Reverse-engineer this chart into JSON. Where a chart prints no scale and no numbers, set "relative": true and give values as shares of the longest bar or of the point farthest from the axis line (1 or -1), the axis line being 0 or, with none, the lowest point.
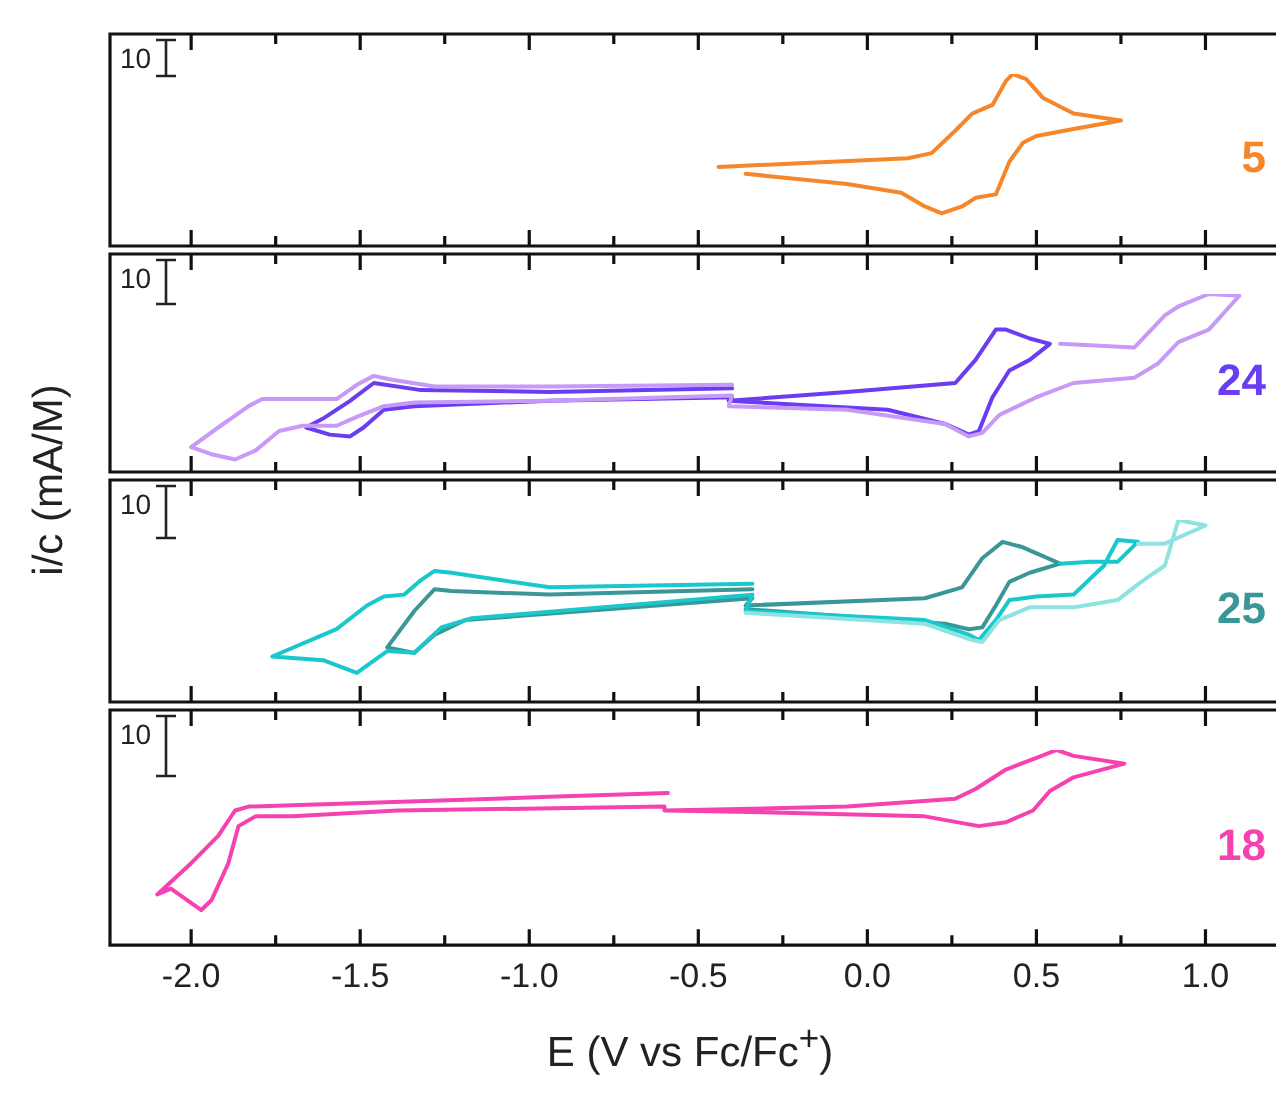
{
  "chart_data": [
    {
      "type": "line",
      "ylabel": "i/c (mA/M)",
      "relative": true,
      "tick_labels": false,
      "xlim": [
        -2.24,
        1.25
      ],
      "xticks": [
        -2,
        {
          "value": -1.75,
          "label": null
        },
        -1.5,
        {
          "value": -1.25,
          "label": null
        },
        -1,
        {
          "value": -0.75,
          "label": null
        },
        -0.5,
        {
          "value": -0.25,
          "label": null
        },
        0,
        {
          "value": 0.25,
          "label": null
        },
        0.5,
        {
          "value": 0.75,
          "label": null
        },
        1
      ],
      "annotations": [
        "10"
      ],
      "series": [
        {
          "name": "5",
          "color": "#f5862a",
          "x": [
            -0.44,
            0.12,
            0.19,
            0.26,
            0.31,
            0.37,
            0.41,
            0.43,
            0.47,
            0.52,
            0.61,
            0.75,
            0.61,
            0.5,
            0.46,
            0.42,
            0.38,
            0.32,
            0.28,
            0.22,
            0.17,
            0.1,
            -0.06,
            -0.36
          ],
          "values": [
            0.46,
            0.51,
            0.54,
            0.67,
            0.77,
            0.82,
            0.96,
            1,
            0.97,
            0.86,
            0.77,
            0.73,
            0.68,
            0.64,
            0.6,
            0.49,
            0.3,
            0.28,
            0.23,
            0.19,
            0.23,
            0.31,
            0.36,
            0.42
          ]
        }
      ]
    },
    {
      "type": "line",
      "relative": true,
      "tick_labels": false,
      "xlim": [
        -2.24,
        1.25
      ],
      "xticks": [
        -2,
        {
          "value": -1.75,
          "label": null
        },
        -1.5,
        {
          "value": -1.25,
          "label": null
        },
        -1,
        {
          "value": -0.75,
          "label": null
        },
        -0.5,
        {
          "value": -0.25,
          "label": null
        },
        0,
        {
          "value": 0.25,
          "label": null
        },
        0.5,
        {
          "value": 0.75,
          "label": null
        },
        1
      ],
      "annotations": [
        "10"
      ],
      "series": [
        {
          "color": "#c79af7",
          "x": [
            -0.4,
            -0.94,
            -1.28,
            -1.41,
            -1.46,
            -1.51,
            -1.57,
            -1.79,
            -1.83,
            -1.92,
            -2.0,
            -1.94,
            -1.87,
            -1.81,
            -1.74,
            -1.67,
            -1.57,
            -1.51,
            -1.43,
            -1.34,
            -0.94,
            -0.4,
            -0.41,
            -0.06,
            0.23,
            0.3,
            0.34,
            0.39,
            0.5,
            0.61,
            0.79,
            0.86,
            0.92,
            1.01,
            1.1,
            1.01,
            0.92,
            0.88,
            0.79,
            0.57
          ],
          "values": [
            0.49,
            0.48,
            0.48,
            0.52,
            0.54,
            0.49,
            0.41,
            0.41,
            0.37,
            0.25,
            0.14,
            0.1,
            0.07,
            0.12,
            0.23,
            0.26,
            0.26,
            0.31,
            0.37,
            0.39,
            0.4,
            0.43,
            0.37,
            0.35,
            0.27,
            0.2,
            0.22,
            0.32,
            0.42,
            0.5,
            0.53,
            0.61,
            0.73,
            0.8,
            0.99,
            1,
            0.93,
            0.88,
            0.7,
            0.72
          ]
        },
        {
          "name": "24",
          "color": "#6a3cf2",
          "x": [
            -0.4,
            -0.94,
            -1.32,
            -1.46,
            -1.53,
            -1.61,
            -1.66,
            -1.59,
            -1.53,
            -1.49,
            -1.43,
            -1.34,
            -0.94,
            -0.4,
            -0.41,
            -0.06,
            0.26,
            0.32,
            0.38,
            0.41,
            0.48,
            0.54,
            0.48,
            0.42,
            0.37,
            0.33,
            0.3,
            0.23,
            0.06,
            -0.41
          ],
          "values": [
            0.47,
            0.45,
            0.46,
            0.5,
            0.4,
            0.3,
            0.25,
            0.21,
            0.2,
            0.25,
            0.35,
            0.37,
            0.4,
            0.42,
            0.4,
            0.45,
            0.5,
            0.63,
            0.8,
            0.8,
            0.75,
            0.72,
            0.63,
            0.57,
            0.42,
            0.23,
            0.21,
            0.27,
            0.35,
            0.4
          ]
        }
      ]
    },
    {
      "type": "line",
      "relative": true,
      "tick_labels": false,
      "xlim": [
        -2.24,
        1.25
      ],
      "xticks": [
        -2,
        {
          "value": -1.75,
          "label": null
        },
        -1.5,
        {
          "value": -1.25,
          "label": null
        },
        -1,
        {
          "value": -0.75,
          "label": null
        },
        -0.5,
        {
          "value": -0.25,
          "label": null
        },
        0,
        {
          "value": 0.25,
          "label": null
        },
        0.5,
        {
          "value": 0.75,
          "label": null
        },
        1
      ],
      "annotations": [
        "10"
      ],
      "series": [
        {
          "color": "#8de3df",
          "x": [
            -0.36,
            0.17,
            0.31,
            0.34,
            0.39,
            0.48,
            0.61,
            0.74,
            0.81,
            0.88,
            0.92,
            1.0,
            0.88,
            0.8
          ],
          "values": [
            0.49,
            0.43,
            0.34,
            0.33,
            0.45,
            0.52,
            0.52,
            0.56,
            0.66,
            0.75,
            1,
            0.97,
            0.87,
            0.87
          ]
        },
        {
          "color": "#19c8cc",
          "x": [
            -0.34,
            -0.94,
            -1.23,
            -1.28,
            -1.32,
            -1.37,
            -1.43,
            -1.48,
            -1.57,
            -1.76,
            -1.61,
            -1.51,
            -1.42,
            -1.34,
            -1.26,
            -1.17,
            -0.34,
            -0.36,
            0.17,
            0.3,
            0.33,
            0.38,
            0.42,
            0.5,
            0.61,
            0.7,
            0.74,
            0.8,
            0.74,
            0.66,
            0.57
          ],
          "values": [
            0.65,
            0.63,
            0.71,
            0.72,
            0.67,
            0.59,
            0.58,
            0.53,
            0.4,
            0.25,
            0.23,
            0.16,
            0.28,
            0.27,
            0.41,
            0.46,
            0.59,
            0.5,
            0.45,
            0.37,
            0.34,
            0.45,
            0.56,
            0.58,
            0.59,
            0.75,
            0.89,
            0.88,
            0.77,
            0.77,
            0.76
          ]
        },
        {
          "name": "25",
          "color": "#3a9797",
          "x": [
            -0.34,
            -0.94,
            -1.23,
            -1.28,
            -1.34,
            -1.42,
            -1.34,
            -1.28,
            -1.19,
            -0.34,
            -0.36,
            0.17,
            0.28,
            0.34,
            0.4,
            0.46,
            0.57,
            0.48,
            0.42,
            0.38,
            0.34,
            0.3,
            0.23,
            -0.06,
            -0.36
          ],
          "values": [
            0.62,
            0.59,
            0.61,
            0.62,
            0.5,
            0.3,
            0.27,
            0.37,
            0.45,
            0.57,
            0.53,
            0.57,
            0.63,
            0.79,
            0.88,
            0.85,
            0.76,
            0.71,
            0.66,
            0.53,
            0.41,
            0.4,
            0.43,
            0.47,
            0.51
          ]
        }
      ]
    },
    {
      "type": "line",
      "relative": true,
      "tick_labels": "x",
      "xlabel": "E (V vs Fc/Fc$^{+}$)",
      "xlim": [
        -2.24,
        1.25
      ],
      "xticks": [
        {
          "value": -2,
          "label": "-2.0"
        },
        {
          "value": -1.75,
          "label": null
        },
        {
          "value": -1.5,
          "label": "-1.5"
        },
        {
          "value": -1.25,
          "label": null
        },
        {
          "value": -1,
          "label": "-1.0"
        },
        {
          "value": -0.75,
          "label": null
        },
        {
          "value": -0.5,
          "label": "-0.5"
        },
        {
          "value": -0.25,
          "label": null
        },
        {
          "value": 0,
          "label": "0.0"
        },
        {
          "value": 0.25,
          "label": null
        },
        {
          "value": 0.5,
          "label": "0.5"
        },
        {
          "value": 0.75,
          "label": null
        },
        {
          "value": 1,
          "label": "1.0"
        }
      ],
      "annotations": [
        "10"
      ],
      "series": [
        {
          "name": "18",
          "color": "#f542b0",
          "x": [
            -0.59,
            -0.94,
            -1.83,
            -1.87,
            -1.92,
            -2.0,
            -2.1,
            -2.06,
            -1.97,
            -1.94,
            -1.89,
            -1.86,
            -1.81,
            -1.7,
            -1.39,
            -0.6,
            -0.6,
            -0.06,
            0.26,
            0.32,
            0.41,
            0.5,
            0.56,
            0.61,
            0.76,
            0.61,
            0.54,
            0.49,
            0.41,
            0.33,
            0.17,
            -0.28,
            -0.59
          ],
          "values": [
            0.78,
            0.76,
            0.71,
            0.69,
            0.56,
            0.42,
            0.26,
            0.29,
            0.18,
            0.23,
            0.42,
            0.61,
            0.66,
            0.66,
            0.69,
            0.71,
            0.69,
            0.71,
            0.75,
            0.8,
            0.9,
            0.96,
            1,
            0.97,
            0.93,
            0.86,
            0.79,
            0.69,
            0.63,
            0.61,
            0.66,
            0.68,
            0.69
          ]
        }
      ]
    }
  ]
}
